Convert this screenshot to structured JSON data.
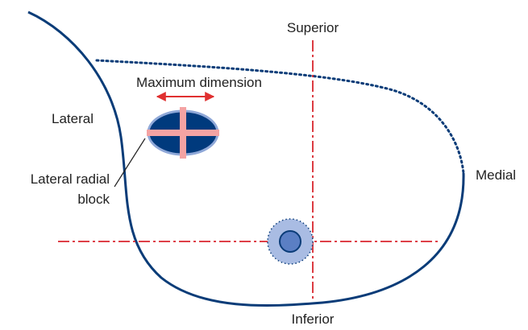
{
  "labels": {
    "superior": "Superior",
    "inferior": "Inferior",
    "lateral": "Lateral",
    "medial": "Medial",
    "maximum_dimension": "Maximum dimension",
    "lateral_radial_block": [
      "Lateral radial",
      "block"
    ]
  }
}
